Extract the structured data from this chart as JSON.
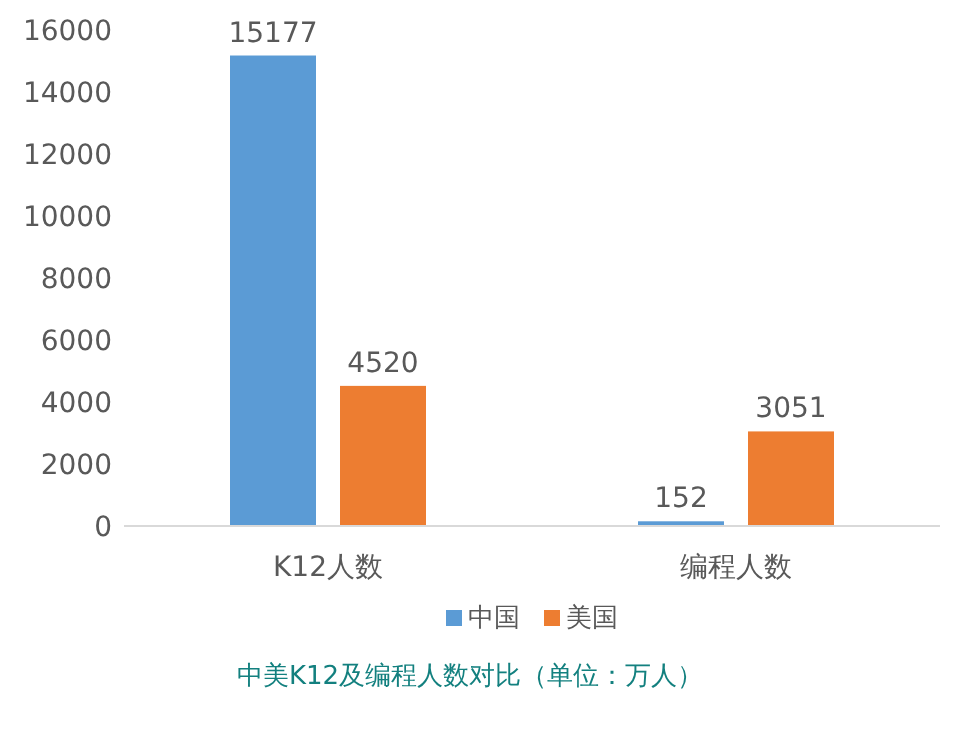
{
  "chart_data": {
    "type": "bar",
    "categories": [
      "K12人数",
      "编程人数"
    ],
    "series": [
      {
        "name": "中国",
        "color": "#5b9bd5",
        "values": [
          15177,
          152
        ]
      },
      {
        "name": "美国",
        "color": "#ed7d31",
        "values": [
          4520,
          3051
        ]
      }
    ],
    "ylim": [
      0,
      16000
    ],
    "yticks": [
      0,
      2000,
      4000,
      6000,
      8000,
      10000,
      12000,
      14000,
      16000
    ],
    "data_labels": true,
    "legend": "bottom",
    "annotations": [
      "中美K12及编程人数对比（单位：万人）"
    ]
  }
}
